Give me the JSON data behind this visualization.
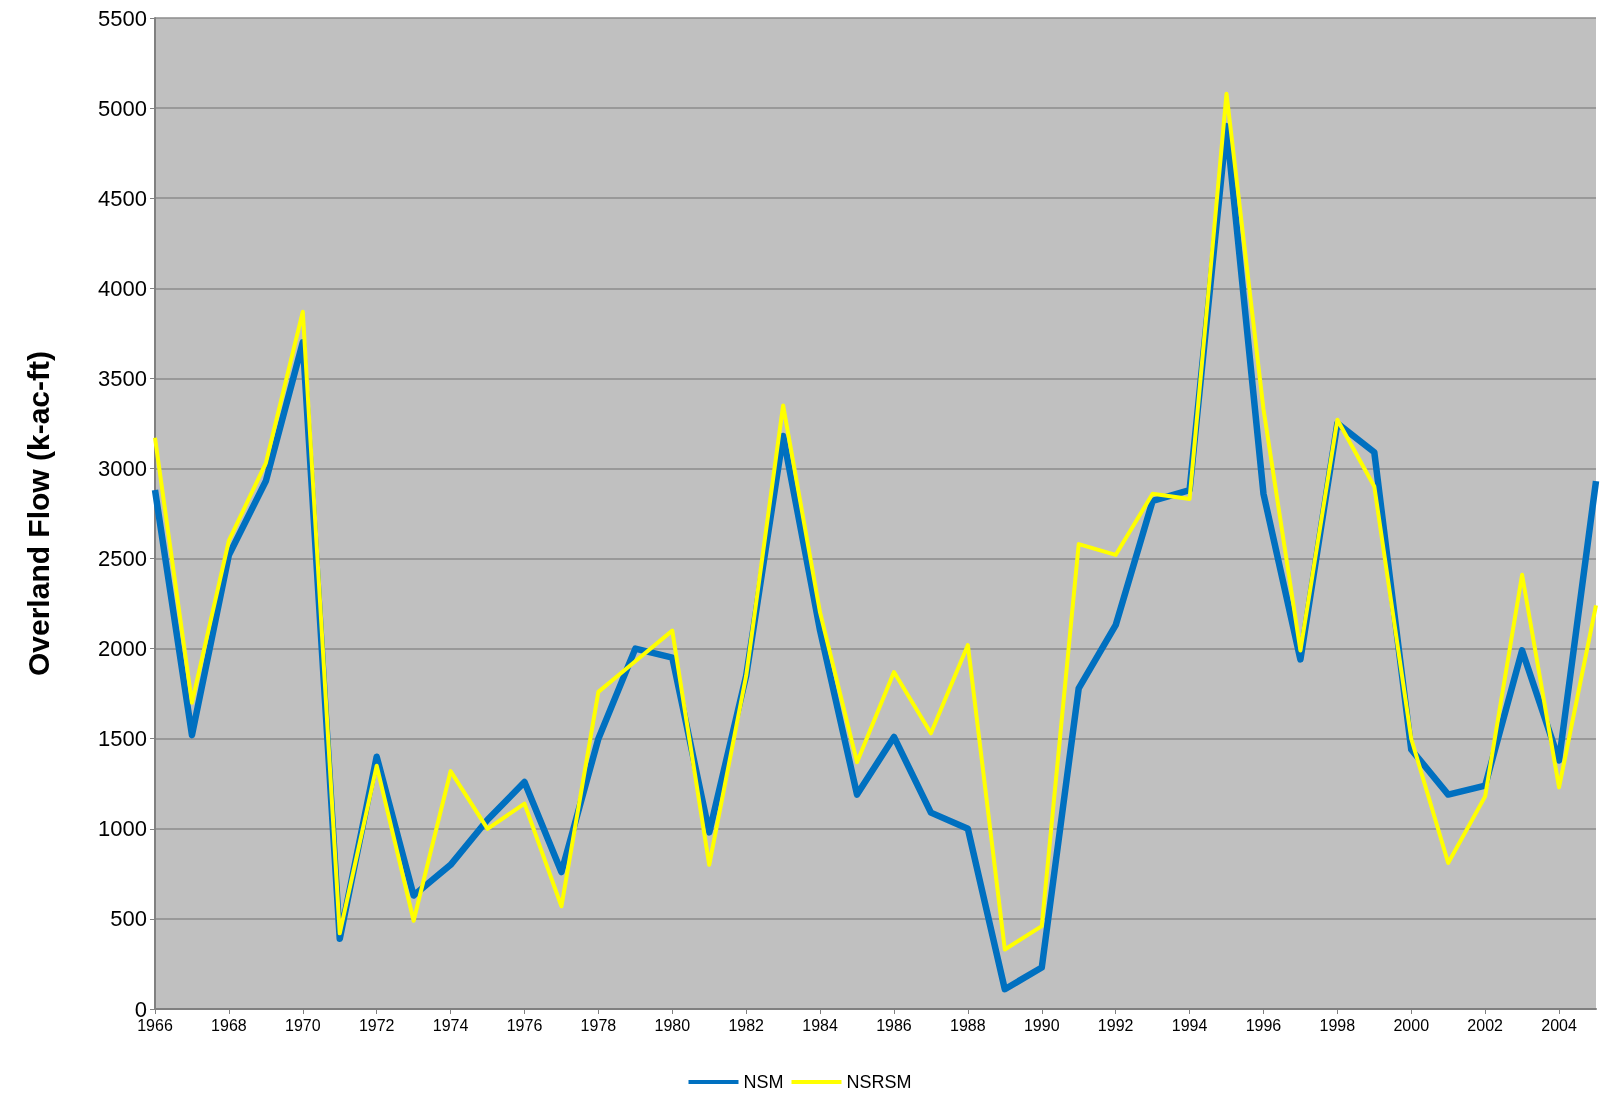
{
  "chart_data": {
    "type": "line",
    "ylabel": "Overland Flow (k-ac-ft)",
    "x": [
      1966,
      1967,
      1968,
      1969,
      1970,
      1971,
      1972,
      1973,
      1974,
      1975,
      1976,
      1977,
      1978,
      1979,
      1980,
      1981,
      1982,
      1983,
      1984,
      1985,
      1986,
      1987,
      1988,
      1989,
      1990,
      1991,
      1992,
      1993,
      1994,
      1995,
      1996,
      1997,
      1998,
      1999,
      2000,
      2001,
      2002,
      2003,
      2004,
      2005
    ],
    "series": [
      {
        "name": "NSM",
        "color": "#0070c0",
        "values": [
          2880,
          1520,
          2520,
          2930,
          3700,
          390,
          1400,
          630,
          800,
          1050,
          1260,
          760,
          1500,
          2000,
          1950,
          980,
          1850,
          3180,
          2100,
          1190,
          1510,
          1090,
          1000,
          110,
          230,
          1780,
          2130,
          2820,
          2880,
          4900,
          2860,
          1940,
          3250,
          3090,
          1440,
          1190,
          1240,
          1990,
          1380,
          2930
        ]
      },
      {
        "name": "NSRSM",
        "color": "#ffff00",
        "values": [
          3170,
          1700,
          2600,
          3030,
          3870,
          420,
          1350,
          490,
          1320,
          1000,
          1140,
          570,
          1760,
          1930,
          2100,
          800,
          1850,
          3350,
          2200,
          1370,
          1870,
          1530,
          2020,
          330,
          460,
          2580,
          2520,
          2860,
          2830,
          5080,
          3330,
          1990,
          3270,
          2900,
          1500,
          810,
          1180,
          2410,
          1230,
          2240
        ]
      }
    ],
    "xlim": [
      1966,
      2005
    ],
    "xticks": [
      1966,
      1968,
      1970,
      1972,
      1974,
      1976,
      1978,
      1980,
      1982,
      1984,
      1986,
      1988,
      1990,
      1992,
      1994,
      1996,
      1998,
      2000,
      2002,
      2004
    ],
    "ylim": [
      0,
      5500
    ],
    "yticks": [
      0,
      500,
      1000,
      1500,
      2000,
      2500,
      3000,
      3500,
      4000,
      4500,
      5000,
      5500
    ],
    "grid": "y",
    "legend": "bottom",
    "marker": "none",
    "line_style": "solid"
  }
}
